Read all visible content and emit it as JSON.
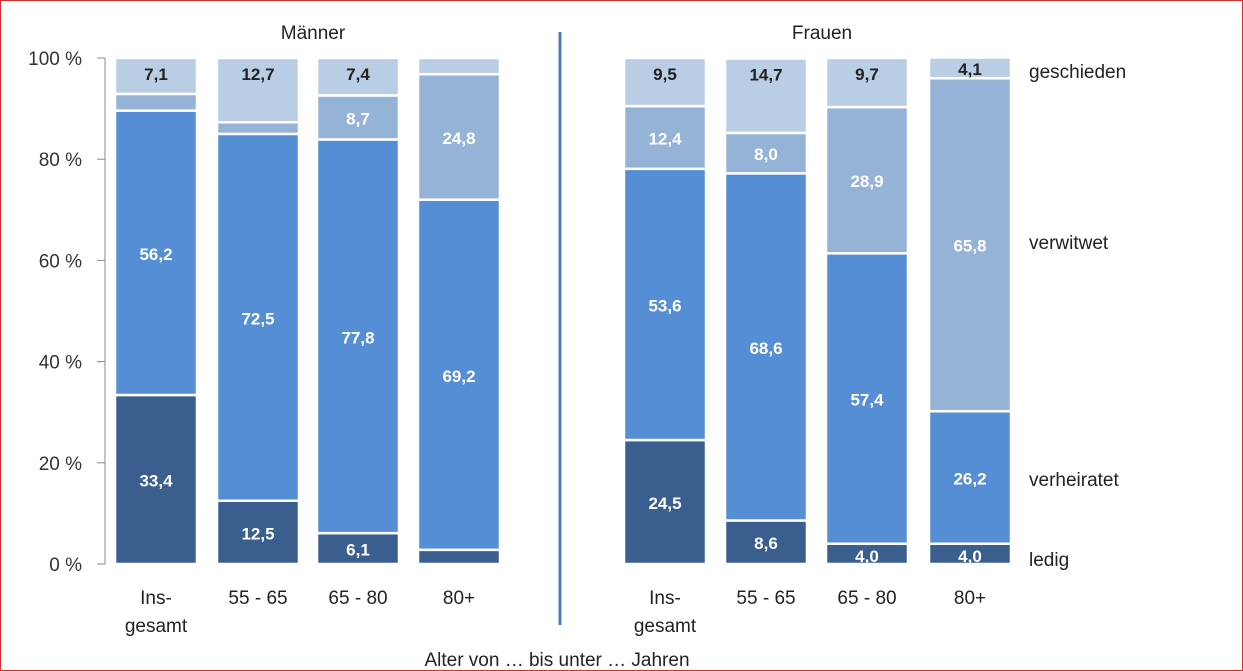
{
  "chart_data": {
    "type": "bar",
    "stacked": true,
    "xlabel": "Alter von … bis unter … Jahren",
    "ylim": [
      0,
      100
    ],
    "yticks": [
      "0 %",
      "20 %",
      "40 %",
      "60 %",
      "80 %",
      "100 %"
    ],
    "legend": [
      "geschieden",
      "verwitwet",
      "verheiratet",
      "ledig"
    ],
    "colors": {
      "ledig": "#3a5f8f",
      "verheiratet": "#558ed5",
      "verwitwet": "#95b3d7",
      "geschieden": "#b9cde5",
      "axis": "#888888",
      "divider": "#4a7ebb"
    },
    "groups": [
      {
        "name": "Männer",
        "categories": [
          [
            "Ins-",
            "gesamt"
          ],
          [
            "55 - 65"
          ],
          [
            "65 - 80"
          ],
          [
            "80+"
          ]
        ],
        "series": [
          {
            "name": "ledig",
            "values": [
              33.4,
              12.5,
              6.1,
              2.8
            ],
            "labels": [
              "33,4",
              "12,5",
              "6,1",
              ""
            ]
          },
          {
            "name": "verheiratet",
            "values": [
              56.2,
              72.5,
              77.8,
              69.2
            ],
            "labels": [
              "56,2",
              "72,5",
              "77,8",
              "69,2"
            ]
          },
          {
            "name": "verwitwet",
            "values": [
              3.3,
              2.3,
              8.7,
              24.8
            ],
            "labels": [
              "",
              "",
              "8,7",
              "24,8"
            ]
          },
          {
            "name": "geschieden",
            "values": [
              7.1,
              12.7,
              7.4,
              3.2
            ],
            "labels": [
              "7,1",
              "12,7",
              "7,4",
              ""
            ]
          }
        ]
      },
      {
        "name": "Frauen",
        "categories": [
          [
            "Ins-",
            "gesamt"
          ],
          [
            "55 - 65"
          ],
          [
            "65 - 80"
          ],
          [
            "80+"
          ]
        ],
        "series": [
          {
            "name": "ledig",
            "values": [
              24.5,
              8.6,
              4.0,
              4.0
            ],
            "labels": [
              "24,5",
              "8,6",
              "4,0",
              "4,0"
            ]
          },
          {
            "name": "verheiratet",
            "values": [
              53.6,
              68.6,
              57.4,
              26.2
            ],
            "labels": [
              "53,6",
              "68,6",
              "57,4",
              "26,2"
            ]
          },
          {
            "name": "verwitwet",
            "values": [
              12.4,
              8.0,
              28.9,
              65.8
            ],
            "labels": [
              "12,4",
              "8,0",
              "28,9",
              "65,8"
            ]
          },
          {
            "name": "geschieden",
            "values": [
              9.5,
              14.7,
              9.7,
              4.1
            ],
            "labels": [
              "9,5",
              "14,7",
              "9,7",
              "4,1"
            ]
          }
        ]
      }
    ]
  }
}
